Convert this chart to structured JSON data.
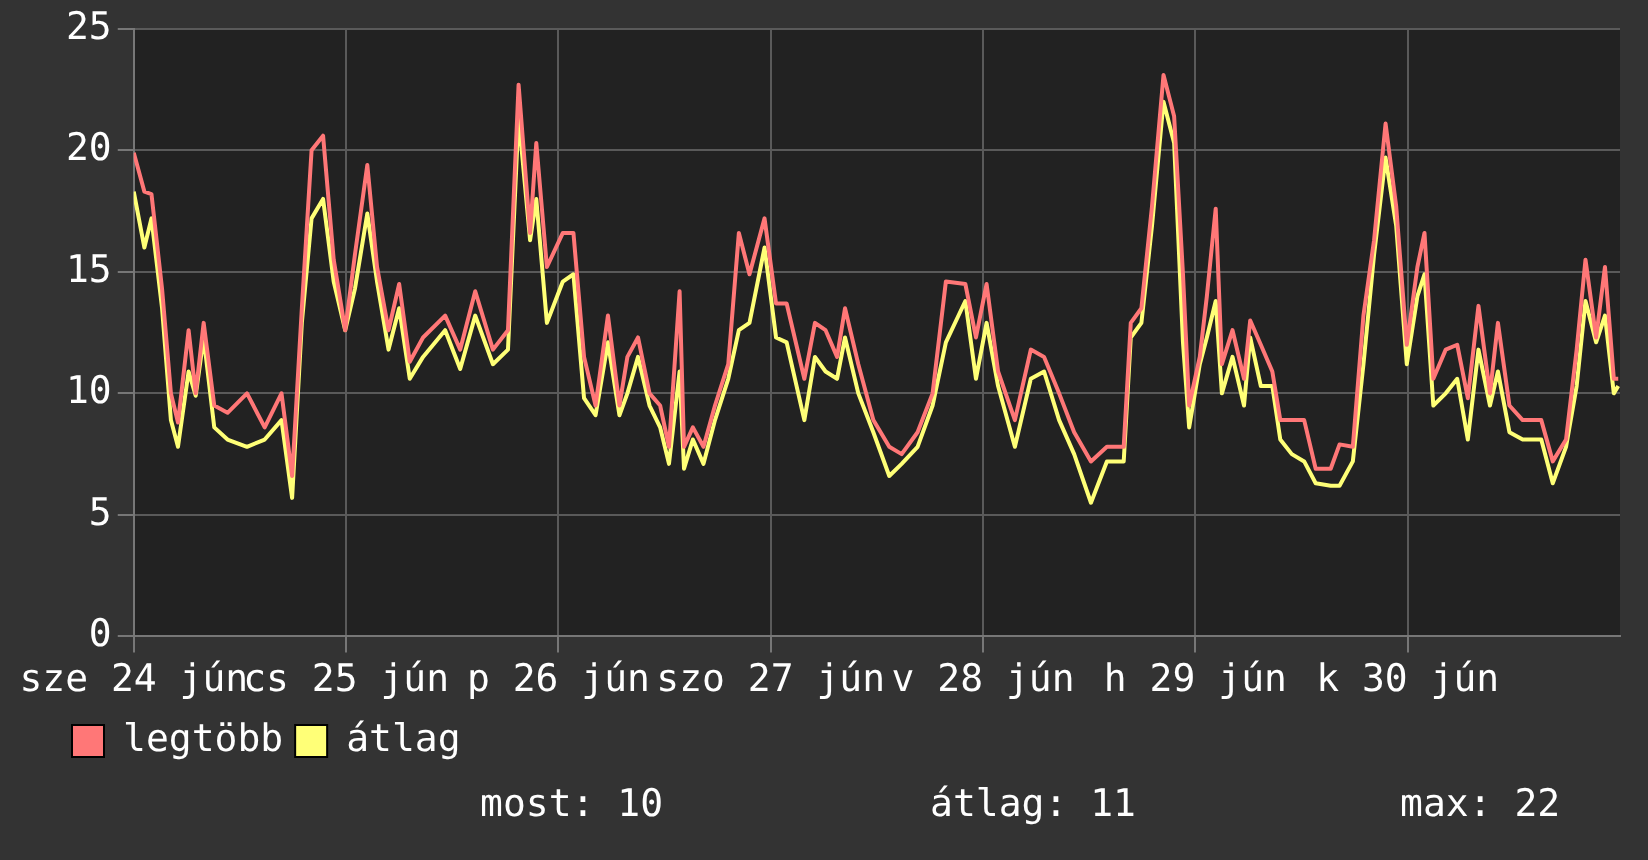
{
  "chart_data": {
    "type": "line",
    "x": [
      "--06-24T00:00",
      "--06-24T01:12",
      "--06-24T02:00",
      "--06-24T03:12",
      "--06-24T04:12",
      "--06-24T05:00",
      "--06-24T06:12",
      "--06-24T07:00",
      "--06-24T07:54",
      "--06-24T09:06",
      "--06-24T10:36",
      "--06-24T12:48",
      "--06-24T14:48",
      "--06-24T16:42",
      "--06-24T17:54",
      "--06-24T19:00",
      "--06-24T20:06",
      "--06-24T21:24",
      "--06-24T22:36",
      "--06-24T23:54",
      "--06-25T01:00",
      "--06-25T02:24",
      "--06-25T03:30",
      "--06-25T04:48",
      "--06-25T06:00",
      "--06-25T07:12",
      "--06-25T08:42",
      "--06-25T11:12",
      "--06-25T12:54",
      "--06-25T14:36",
      "--06-25T16:36",
      "--06-25T18:18",
      "--06-25T19:30",
      "--06-25T20:48",
      "--06-25T21:30",
      "--06-25T22:42",
      "--06-26T00:30",
      "--06-26T01:42",
      "--06-26T02:54",
      "--06-26T04:12",
      "--06-26T05:36",
      "--06-26T06:54",
      "--06-26T07:48",
      "--06-26T09:00",
      "--06-26T10:18",
      "--06-26T11:30",
      "--06-26T12:30",
      "--06-26T13:42",
      "--06-26T14:12",
      "--06-26T15:12",
      "--06-26T16:24",
      "--06-26T17:42",
      "--06-26T19:12",
      "--06-26T20:24",
      "--06-26T21:36",
      "--06-26T23:18",
      "--06-27T00:36",
      "--06-27T01:48",
      "--06-27T03:48",
      "--06-27T05:00",
      "--06-27T06:12",
      "--06-27T07:30",
      "--06-27T08:24",
      "--06-27T09:54",
      "--06-27T11:36",
      "--06-27T13:24",
      "--06-27T14:48",
      "--06-27T16:36",
      "--06-27T18:18",
      "--06-27T19:48",
      "--06-27T22:00",
      "--06-27T23:12",
      "--06-28T00:24",
      "--06-28T01:42",
      "--06-28T03:36",
      "--06-28T05:24",
      "--06-28T06:54",
      "--06-28T08:36",
      "--06-28T10:18",
      "--06-28T12:12",
      "--06-28T14:00",
      "--06-28T15:54",
      "--06-28T16:42",
      "--06-28T17:54",
      "--06-28T19:06",
      "--06-28T20:24",
      "--06-28T21:36",
      "--06-28T22:36",
      "--06-28T23:18",
      "--06-29T00:30",
      "--06-29T01:18",
      "--06-29T02:18",
      "--06-29T03:00",
      "--06-29T04:12",
      "--06-29T05:30",
      "--06-29T06:12",
      "--06-29T07:24",
      "--06-29T08:42",
      "--06-29T09:36",
      "--06-29T10:54",
      "--06-29T12:18",
      "--06-29T13:36",
      "--06-29T15:18",
      "--06-29T16:18",
      "--06-29T17:48",
      "--06-29T19:00",
      "--06-29T20:12",
      "--06-29T21:30",
      "--06-29T22:42",
      "--06-29T23:54",
      "--06-30T01:06",
      "--06-30T01:54",
      "--06-30T02:54",
      "--06-30T04:18",
      "--06-30T05:36",
      "--06-30T06:48",
      "--06-30T08:00",
      "--06-30T09:18",
      "--06-30T10:12",
      "--06-30T11:30",
      "--06-30T13:00",
      "--06-30T15:06",
      "--06-30T16:24",
      "--06-30T17:54",
      "--06-30T19:06",
      "--06-30T20:06",
      "--06-30T21:18",
      "--06-30T22:18",
      "--06-30T23:18",
      "--06-30T23:48"
    ],
    "series": [
      {
        "name": "legtöbb",
        "color": "#ff7777",
        "values": [
          19.9,
          18.3,
          18.2,
          14.3,
          10,
          8.8,
          12.6,
          10,
          12.9,
          9.5,
          9.2,
          10,
          8.6,
          10,
          6.6,
          13.5,
          20,
          20.6,
          15.5,
          12.6,
          15.7,
          19.4,
          15.2,
          12.6,
          14.5,
          11.3,
          12.3,
          13.2,
          11.8,
          14.2,
          11.8,
          12.6,
          22.7,
          16.6,
          20.3,
          15.2,
          16.6,
          16.6,
          11.5,
          9.5,
          13.2,
          9.5,
          11.5,
          12.3,
          10,
          9.5,
          7.8,
          14.2,
          7.8,
          8.6,
          7.8,
          9.5,
          11.2,
          16.6,
          14.9,
          17.2,
          13.7,
          13.7,
          10.6,
          12.9,
          12.6,
          11.5,
          13.5,
          11.2,
          8.9,
          7.8,
          7.5,
          8.4,
          10,
          14.6,
          14.5,
          12.3,
          14.5,
          10.9,
          8.9,
          11.8,
          11.5,
          10,
          8.4,
          7.2,
          7.8,
          7.8,
          12.9,
          13.5,
          17.7,
          23.1,
          21.4,
          14.9,
          9.5,
          11.5,
          14,
          17.6,
          11.2,
          12.6,
          10.6,
          13,
          12,
          10.9,
          8.9,
          8.9,
          8.9,
          6.9,
          6.9,
          7.9,
          7.8,
          13.2,
          16.3,
          21.1,
          17.7,
          12,
          15.2,
          16.6,
          10.6,
          11.8,
          12,
          9.8,
          13.6,
          10,
          12.9,
          9.5,
          8.9,
          8.9,
          7.2,
          8.1,
          11.8,
          15.5,
          12.3,
          15.2,
          10.6,
          10.6
        ]
      },
      {
        "name": "átlag",
        "color": "#ffff77",
        "values": [
          18.3,
          16,
          17.2,
          13.5,
          8.9,
          7.8,
          10.9,
          9.9,
          12.3,
          8.6,
          8.1,
          7.8,
          8.1,
          8.9,
          5.7,
          12.9,
          17.2,
          18,
          14.6,
          12.6,
          14.3,
          17.4,
          14.6,
          11.8,
          13.5,
          10.6,
          11.5,
          12.6,
          11,
          13.2,
          11.2,
          11.8,
          21.4,
          16.3,
          18,
          12.9,
          14.6,
          14.9,
          9.8,
          9.1,
          12.1,
          9.1,
          10,
          11.5,
          9.5,
          8.6,
          7.1,
          10.9,
          6.9,
          8.1,
          7.1,
          8.9,
          10.6,
          12.6,
          12.9,
          16,
          12.3,
          12.1,
          8.9,
          11.5,
          10.9,
          10.6,
          12.3,
          10,
          8.4,
          6.6,
          7.1,
          7.8,
          9.5,
          12.1,
          13.8,
          10.6,
          12.9,
          10.3,
          7.8,
          10.6,
          10.9,
          8.9,
          7.5,
          5.5,
          7.2,
          7.2,
          12.3,
          12.9,
          16.9,
          22,
          20.3,
          12.1,
          8.6,
          11.2,
          12.3,
          13.8,
          10,
          11.5,
          9.5,
          12.3,
          10.3,
          10.3,
          8.1,
          7.5,
          7.2,
          6.3,
          6.2,
          6.2,
          7.2,
          11.2,
          15.7,
          19.7,
          16.9,
          11.2,
          14,
          14.9,
          9.5,
          10,
          10.6,
          8.1,
          11.8,
          9.5,
          10.9,
          8.4,
          8.1,
          8.1,
          6.3,
          7.8,
          10.3,
          13.8,
          12.1,
          13.2,
          10,
          10.3
        ]
      }
    ],
    "xlim": [
      "--06-24T00:00",
      "--07-01T00:00"
    ],
    "xticks": [
      {
        "value": "--06-24",
        "label": "sze 24 jún"
      },
      {
        "value": "--06-25",
        "label": "cs 25 jún"
      },
      {
        "value": "--06-26",
        "label": "p 26 jún"
      },
      {
        "value": "--06-27",
        "label": "szo 27 jún"
      },
      {
        "value": "--06-28",
        "label": "v 28 jún"
      },
      {
        "value": "--06-29",
        "label": "h 29 jún"
      },
      {
        "value": "--06-30",
        "label": "k 30 jún"
      }
    ],
    "ylim": [
      0,
      25
    ],
    "yticks": [
      0,
      5,
      10,
      15,
      20,
      25
    ],
    "grid": true,
    "legend": "bottom left",
    "marker": "none",
    "line_style": "solid",
    "annotations": [
      "most: 10",
      "átlag: 11",
      "max: 22"
    ]
  }
}
